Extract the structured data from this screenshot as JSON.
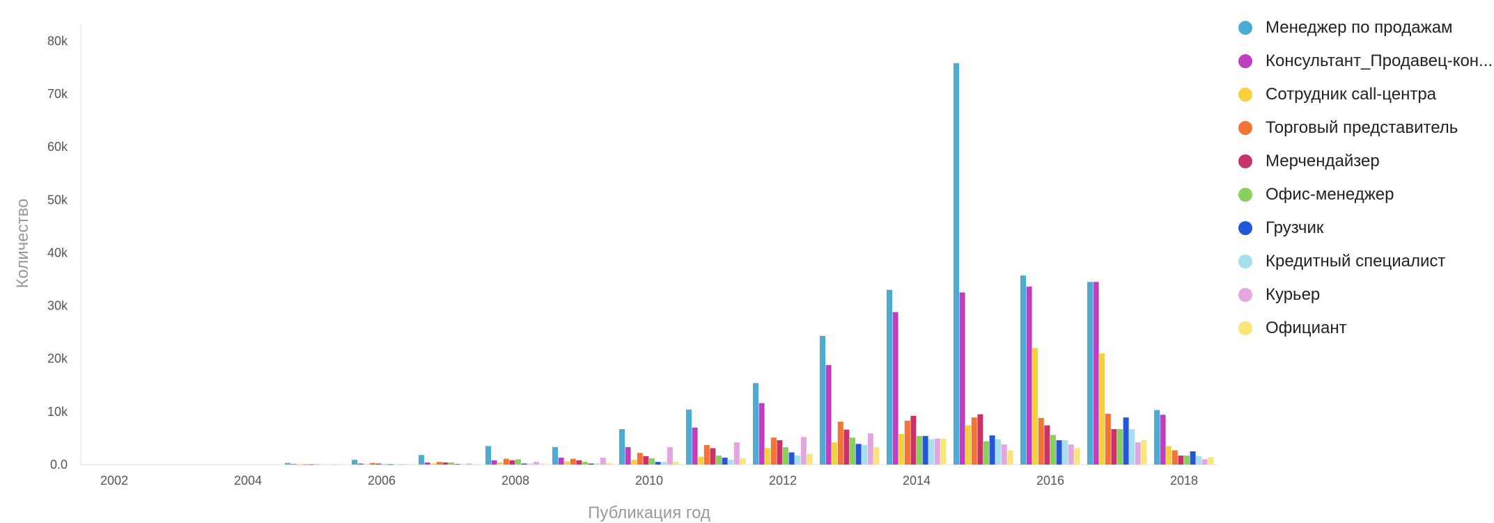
{
  "chart_data": {
    "type": "bar",
    "xlabel": "Публикация год",
    "ylabel": "Количество",
    "ylim": [
      0,
      83000
    ],
    "yticks": [
      0,
      10000,
      20000,
      30000,
      40000,
      50000,
      60000,
      70000,
      80000
    ],
    "ytick_labels": [
      "0.0",
      "10k",
      "20k",
      "30k",
      "40k",
      "50k",
      "60k",
      "70k",
      "80k"
    ],
    "xticks": [
      2002,
      2004,
      2006,
      2008,
      2010,
      2012,
      2014,
      2016,
      2018
    ],
    "legend_position": "right",
    "grid": false,
    "categories": [
      2002,
      2003,
      2004,
      2005,
      2006,
      2007,
      2008,
      2009,
      2010,
      2011,
      2012,
      2013,
      2014,
      2015,
      2016,
      2017,
      2018
    ],
    "series": [
      {
        "name": "Менеджер по продажам",
        "color": "#4AABD3",
        "values": [
          0,
          0,
          0,
          300,
          900,
          1800,
          3500,
          3300,
          6700,
          10400,
          15400,
          24300,
          33000,
          75800,
          35700,
          34500,
          10300
        ]
      },
      {
        "name": "Консультант_Продавец-кон...",
        "color": "#BD3FBF",
        "values": [
          0,
          0,
          0,
          100,
          200,
          400,
          800,
          1300,
          3300,
          7000,
          11600,
          18800,
          28800,
          32500,
          33600,
          34500,
          9400
        ]
      },
      {
        "name": "Сотрудник call-центра",
        "color": "#F7D03C",
        "values": [
          0,
          0,
          0,
          50,
          100,
          200,
          400,
          600,
          900,
          1500,
          3100,
          4200,
          5800,
          7400,
          22000,
          21000,
          3500
        ]
      },
      {
        "name": "Торговый представитель",
        "color": "#F27536",
        "values": [
          0,
          0,
          0,
          50,
          300,
          500,
          1100,
          1100,
          2200,
          3700,
          5100,
          8100,
          8300,
          8900,
          8800,
          9600,
          2700
        ]
      },
      {
        "name": "Мерчендайзер",
        "color": "#C8336A",
        "values": [
          0,
          0,
          0,
          50,
          200,
          400,
          800,
          800,
          1600,
          3100,
          4600,
          6600,
          9200,
          9500,
          7400,
          6700,
          1700
        ]
      },
      {
        "name": "Офис-менеджер",
        "color": "#8AD05E",
        "values": [
          0,
          0,
          0,
          50,
          100,
          400,
          1000,
          500,
          1200,
          1700,
          3300,
          5100,
          5400,
          4400,
          5600,
          6700,
          1700
        ]
      },
      {
        "name": "Грузчик",
        "color": "#2158D9",
        "values": [
          0,
          0,
          0,
          0,
          50,
          100,
          200,
          200,
          500,
          1300,
          2300,
          3900,
          5400,
          5500,
          4600,
          8900,
          2500
        ]
      },
      {
        "name": "Кредитный специалист",
        "color": "#A8DFEE",
        "values": [
          0,
          0,
          0,
          0,
          50,
          100,
          200,
          200,
          500,
          900,
          1700,
          3700,
          4800,
          4800,
          4600,
          6700,
          1600
        ]
      },
      {
        "name": "Курьер",
        "color": "#E3A6DF",
        "values": [
          0,
          0,
          0,
          50,
          100,
          200,
          500,
          1300,
          3300,
          4200,
          5200,
          5900,
          4900,
          3800,
          3800,
          4200,
          1000
        ]
      },
      {
        "name": "Официант",
        "color": "#FBE577",
        "values": [
          0,
          0,
          0,
          50,
          100,
          100,
          200,
          300,
          500,
          1200,
          2000,
          3300,
          4900,
          2700,
          3100,
          4600,
          1400
        ]
      }
    ]
  }
}
